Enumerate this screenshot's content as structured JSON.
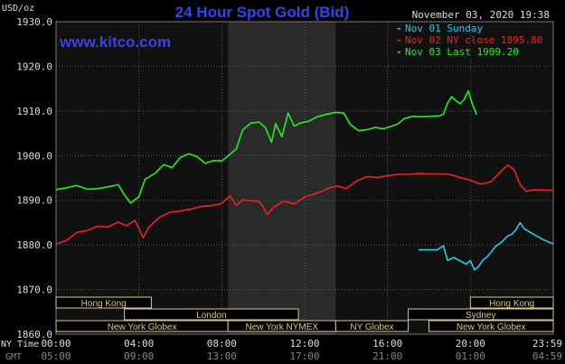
{
  "header": {
    "title": "24 Hour Spot Gold (Bid)",
    "timestamp": "November 03, 2020 19:38",
    "unit": "USD/oz",
    "watermark": "www.kitco.com"
  },
  "colors": {
    "background": "#000000",
    "plot_background": "#111111",
    "shaded_band": "#2a2a2a",
    "grid": "#555555",
    "title": "#3344ee",
    "watermark": "#3344ee",
    "axis_text": "#dddddd",
    "session_box_bg": "#d6c98a",
    "session_box_text": "#000000"
  },
  "chart_data": {
    "type": "line",
    "title": "24 Hour Spot Gold (Bid)",
    "ylabel": "USD/oz",
    "ylim": [
      1860,
      1930
    ],
    "yticks": [
      "1930.0",
      "1920.0",
      "1910.0",
      "1900.0",
      "1890.0",
      "1880.0",
      "1870.0",
      "1860.0"
    ],
    "xlim": [
      0,
      24
    ],
    "x_tick_labels_ny": [
      "00:00",
      "04:00",
      "08:00",
      "12:00",
      "16:00",
      "20:00",
      "23:59"
    ],
    "x_tick_labels_gmt": [
      "05:00",
      "09:00",
      "13:00",
      "17:00",
      "21:00",
      "01:00",
      "04:59"
    ],
    "x_row_labels": [
      "NY Time",
      "GMT"
    ],
    "shaded_hours": [
      8.3,
      13.5
    ],
    "legend": [
      {
        "text": "Nov 01 Sunday",
        "color": "#22c8f0"
      },
      {
        "text": "Nov 02 NY close 1895.80",
        "color": "#ee2222"
      },
      {
        "text": "Nov 03 Last 1909.20",
        "color": "#22ee22"
      }
    ],
    "series": [
      {
        "name": "Nov 01 Sunday",
        "color": "#22c8f0",
        "points": [
          [
            17.5,
            1878.9
          ],
          [
            18.0,
            1878.9
          ],
          [
            18.4,
            1878.9
          ],
          [
            18.7,
            1879.8
          ],
          [
            18.9,
            1876.5
          ],
          [
            19.2,
            1877.2
          ],
          [
            19.5,
            1876.4
          ],
          [
            19.8,
            1875.7
          ],
          [
            20.0,
            1876.5
          ],
          [
            20.2,
            1874.4
          ],
          [
            20.4,
            1875.2
          ],
          [
            20.6,
            1876.6
          ],
          [
            20.8,
            1877.3
          ],
          [
            21.0,
            1878.4
          ],
          [
            21.2,
            1879.6
          ],
          [
            21.5,
            1880.6
          ],
          [
            21.8,
            1882.0
          ],
          [
            22.0,
            1882.4
          ],
          [
            22.2,
            1883.4
          ],
          [
            22.4,
            1885.0
          ],
          [
            22.6,
            1883.6
          ],
          [
            22.9,
            1882.8
          ],
          [
            23.2,
            1882.0
          ],
          [
            23.5,
            1881.2
          ],
          [
            23.8,
            1880.6
          ],
          [
            24.0,
            1880.3
          ]
        ]
      },
      {
        "name": "Nov 02 NY close 1895.80",
        "color": "#ee2222",
        "points": [
          [
            0.0,
            1880.2
          ],
          [
            0.5,
            1881.0
          ],
          [
            1.0,
            1882.8
          ],
          [
            1.5,
            1883.2
          ],
          [
            2.0,
            1884.2
          ],
          [
            2.5,
            1884.0
          ],
          [
            3.0,
            1885.1
          ],
          [
            3.4,
            1884.3
          ],
          [
            3.8,
            1885.5
          ],
          [
            4.0,
            1883.7
          ],
          [
            4.2,
            1881.6
          ],
          [
            4.5,
            1884.1
          ],
          [
            5.0,
            1886.2
          ],
          [
            5.5,
            1887.3
          ],
          [
            6.0,
            1887.6
          ],
          [
            6.5,
            1888.0
          ],
          [
            7.0,
            1888.6
          ],
          [
            7.5,
            1888.8
          ],
          [
            8.0,
            1889.3
          ],
          [
            8.4,
            1891.0
          ],
          [
            8.7,
            1888.8
          ],
          [
            9.0,
            1890.1
          ],
          [
            9.4,
            1889.9
          ],
          [
            9.8,
            1889.7
          ],
          [
            10.0,
            1888.5
          ],
          [
            10.2,
            1886.8
          ],
          [
            10.5,
            1888.4
          ],
          [
            11.0,
            1889.8
          ],
          [
            11.5,
            1889.2
          ],
          [
            12.0,
            1890.7
          ],
          [
            12.4,
            1891.3
          ],
          [
            12.8,
            1891.9
          ],
          [
            13.2,
            1892.8
          ],
          [
            13.6,
            1893.2
          ],
          [
            14.0,
            1892.6
          ],
          [
            14.5,
            1894.3
          ],
          [
            15.0,
            1895.3
          ],
          [
            15.5,
            1895.1
          ],
          [
            16.0,
            1895.5
          ],
          [
            16.5,
            1895.8
          ],
          [
            17.0,
            1895.8
          ],
          [
            17.5,
            1896.0
          ],
          [
            18.0,
            1895.9
          ],
          [
            18.5,
            1895.9
          ],
          [
            19.0,
            1895.8
          ],
          [
            19.5,
            1895.1
          ],
          [
            20.0,
            1894.5
          ],
          [
            20.5,
            1893.6
          ],
          [
            21.0,
            1894.2
          ],
          [
            21.5,
            1896.6
          ],
          [
            21.8,
            1897.9
          ],
          [
            22.1,
            1896.9
          ],
          [
            22.4,
            1893.5
          ],
          [
            22.7,
            1892.0
          ],
          [
            23.0,
            1892.3
          ],
          [
            23.5,
            1892.3
          ],
          [
            24.0,
            1892.2
          ]
        ]
      },
      {
        "name": "Nov 03 Last 1909.20",
        "color": "#22ee22",
        "points": [
          [
            0.0,
            1892.4
          ],
          [
            0.5,
            1892.8
          ],
          [
            1.0,
            1893.3
          ],
          [
            1.5,
            1892.5
          ],
          [
            2.0,
            1892.6
          ],
          [
            2.5,
            1893.0
          ],
          [
            3.0,
            1893.5
          ],
          [
            3.3,
            1891.2
          ],
          [
            3.6,
            1889.4
          ],
          [
            4.0,
            1890.8
          ],
          [
            4.3,
            1894.7
          ],
          [
            4.8,
            1896.1
          ],
          [
            5.2,
            1898.0
          ],
          [
            5.6,
            1897.3
          ],
          [
            6.0,
            1899.6
          ],
          [
            6.4,
            1900.4
          ],
          [
            6.8,
            1899.8
          ],
          [
            7.2,
            1898.3
          ],
          [
            7.6,
            1898.9
          ],
          [
            8.0,
            1898.8
          ],
          [
            8.4,
            1900.3
          ],
          [
            8.7,
            1901.5
          ],
          [
            9.0,
            1905.7
          ],
          [
            9.4,
            1907.3
          ],
          [
            9.8,
            1907.5
          ],
          [
            10.1,
            1906.3
          ],
          [
            10.4,
            1903.0
          ],
          [
            10.6,
            1907.2
          ],
          [
            10.9,
            1904.2
          ],
          [
            11.2,
            1909.5
          ],
          [
            11.5,
            1906.6
          ],
          [
            11.8,
            1907.3
          ],
          [
            12.2,
            1907.7
          ],
          [
            12.6,
            1908.7
          ],
          [
            13.0,
            1909.2
          ],
          [
            13.5,
            1909.7
          ],
          [
            13.9,
            1909.5
          ],
          [
            14.2,
            1907.0
          ],
          [
            14.6,
            1905.6
          ],
          [
            15.0,
            1905.8
          ],
          [
            15.4,
            1906.3
          ],
          [
            15.8,
            1906.0
          ],
          [
            16.2,
            1906.6
          ],
          [
            16.5,
            1907.1
          ],
          [
            16.8,
            1908.3
          ],
          [
            17.2,
            1908.8
          ],
          [
            17.6,
            1908.7
          ],
          [
            18.0,
            1908.8
          ],
          [
            18.5,
            1908.9
          ],
          [
            18.7,
            1909.3
          ],
          [
            18.9,
            1911.8
          ],
          [
            19.1,
            1913.2
          ],
          [
            19.3,
            1912.3
          ],
          [
            19.5,
            1911.6
          ],
          [
            19.7,
            1912.6
          ],
          [
            19.9,
            1914.5
          ],
          [
            20.1,
            1911.5
          ],
          [
            20.3,
            1909.2
          ]
        ]
      }
    ]
  },
  "sessions": [
    {
      "name": "Hong Kong",
      "start": 0.0,
      "end": 4.6,
      "row": 0
    },
    {
      "name": "London",
      "start": 3.3,
      "end": 11.7,
      "row": 1
    },
    {
      "name": "New York Globex",
      "start": 0.0,
      "end": 8.3,
      "row": 2
    },
    {
      "name": "New York NYMEX",
      "start": 8.3,
      "end": 13.5,
      "row": 2
    },
    {
      "name": "NY Globex",
      "start": 13.5,
      "end": 17.0,
      "row": 2
    },
    {
      "name": "New York Globex",
      "start": 18.0,
      "end": 24.0,
      "row": 2
    },
    {
      "name": "Sydney",
      "start": 17.0,
      "end": 24.0,
      "row": 1
    },
    {
      "name": "Hong Kong",
      "start": 20.0,
      "end": 24.0,
      "row": 0
    }
  ]
}
